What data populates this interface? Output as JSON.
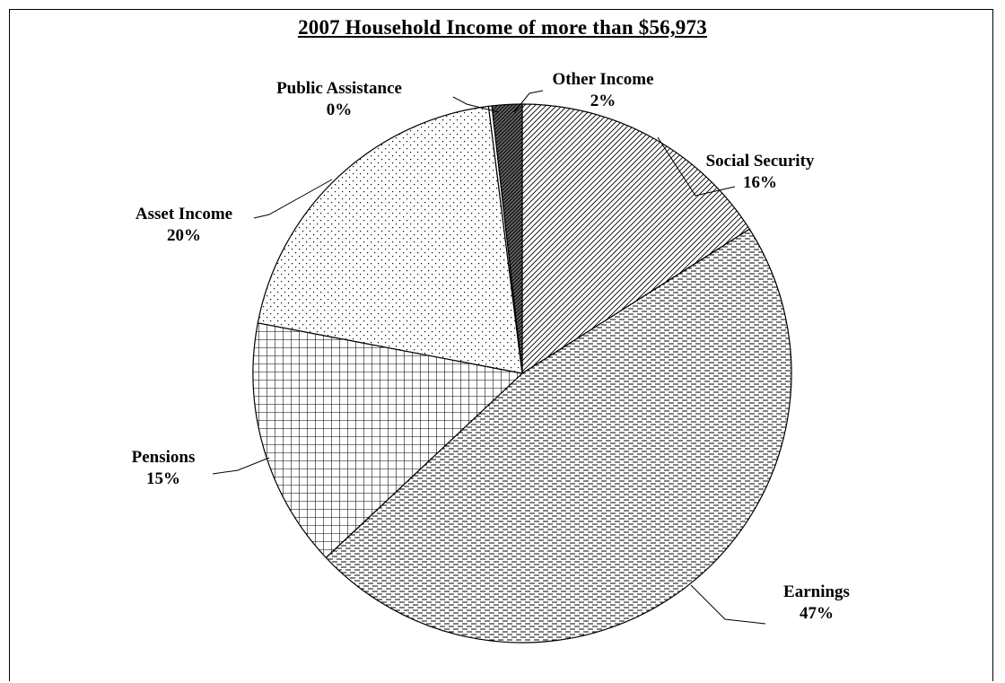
{
  "chart_data": {
    "type": "pie",
    "title": "2007 Household Income of more than $56,973",
    "slices": [
      {
        "label": "Social Security",
        "pct_label": "16%",
        "value": 16.0,
        "pattern": "diag-fine"
      },
      {
        "label": "Earnings",
        "pct_label": "47%",
        "value": 47.0,
        "pattern": "horiz-dash"
      },
      {
        "label": "Pensions",
        "pct_label": "15%",
        "value": 15.0,
        "pattern": "grid"
      },
      {
        "label": "Asset Income",
        "pct_label": "20%",
        "value": 20.0,
        "pattern": "dots"
      },
      {
        "label": "Public Assistance",
        "pct_label": "0%",
        "value": 0.2,
        "pattern": "none"
      },
      {
        "label": "Other Income",
        "pct_label": "2%",
        "value": 1.8,
        "pattern": "diag-dark"
      }
    ],
    "start_angle_deg": 0,
    "direction": "clockwise",
    "legend": "none",
    "colors": {
      "outline": "#000000",
      "background": "#ffffff"
    }
  }
}
